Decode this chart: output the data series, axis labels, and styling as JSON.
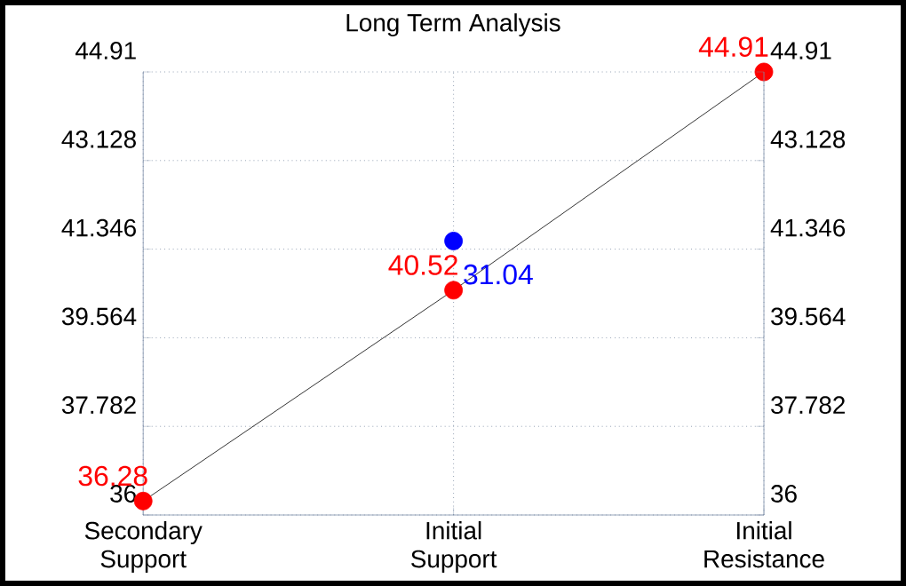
{
  "chart_data": {
    "type": "line",
    "title": "Long Term Analysis",
    "categories": [
      "Secondary Support",
      "Initial Support",
      "Initial Resistance"
    ],
    "series": [
      {
        "color": "#000000",
        "colors": [
          "#ff0000",
          "#ff0000",
          "#ff0000"
        ],
        "values": [
          36.28,
          40.52,
          44.91
        ],
        "value_labels": [
          "36.28",
          "40.52",
          "44.91"
        ]
      },
      {
        "type": "scatter",
        "color": "#0000ff",
        "values": [
          null,
          41.51,
          null
        ]
      }
    ],
    "annotations": [
      "31.04"
    ],
    "ylim": [
      36,
      44.91
    ],
    "yticks": [
      36,
      37.782,
      39.564,
      41.346,
      43.128,
      44.91
    ],
    "y2lim": [
      36,
      44.91
    ],
    "y2ticks": [
      36,
      37.782,
      39.564,
      41.346,
      43.128,
      44.91
    ],
    "grid": true,
    "marker": "circle",
    "tick_labels": true
  }
}
